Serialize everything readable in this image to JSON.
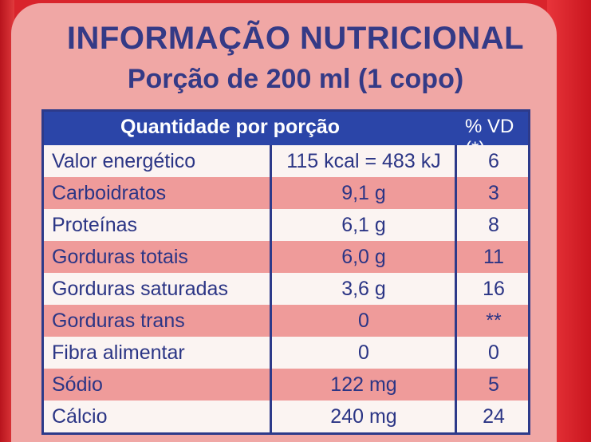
{
  "title": "INFORMAÇÃO NUTRICIONAL",
  "subtitle": "Porção de 200 ml (1 copo)",
  "header": {
    "quantity": "Quantidade por porção",
    "vd": "% VD (*)"
  },
  "rows": [
    {
      "name": "Valor energético",
      "qty": "115 kcal = 483 kJ",
      "vd": "6"
    },
    {
      "name": "Carboidratos",
      "qty": "9,1 g",
      "vd": "3"
    },
    {
      "name": "Proteínas",
      "qty": "6,1 g",
      "vd": "8"
    },
    {
      "name": "Gorduras totais",
      "qty": "6,0 g",
      "vd": "11"
    },
    {
      "name": "Gorduras saturadas",
      "qty": "3,6 g",
      "vd": "16"
    },
    {
      "name": "Gorduras trans",
      "qty": "0",
      "vd": "**"
    },
    {
      "name": "Fibra alimentar",
      "qty": "0",
      "vd": "0"
    },
    {
      "name": "Sódio",
      "qty": "122 mg",
      "vd": "5"
    },
    {
      "name": "Cálcio",
      "qty": "240 mg",
      "vd": "24"
    }
  ]
}
